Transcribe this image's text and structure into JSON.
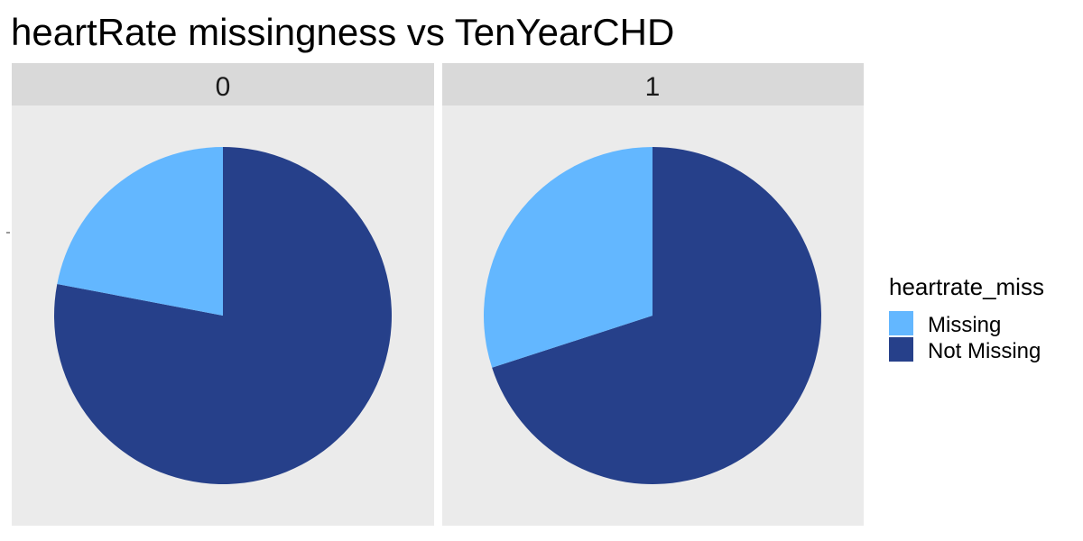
{
  "chart_data": {
    "type": "pie",
    "title": "heartRate missingness vs TenYearCHD",
    "facet_variable": "TenYearCHD",
    "panels": [
      {
        "facet": "0",
        "slices": [
          {
            "label": "Missing",
            "value": 0.22
          },
          {
            "label": "Not Missing",
            "value": 0.78
          }
        ]
      },
      {
        "facet": "1",
        "slices": [
          {
            "label": "Missing",
            "value": 0.3
          },
          {
            "label": "Not Missing",
            "value": 0.7
          }
        ]
      }
    ],
    "legend": {
      "title": "heartrate_miss",
      "position": "right",
      "items": [
        {
          "label": "Missing",
          "color": "#63b7ff"
        },
        {
          "label": "Not Missing",
          "color": "#26408a"
        }
      ]
    },
    "panel_background": "#ebebeb",
    "strip_background": "#d9d9d9"
  }
}
